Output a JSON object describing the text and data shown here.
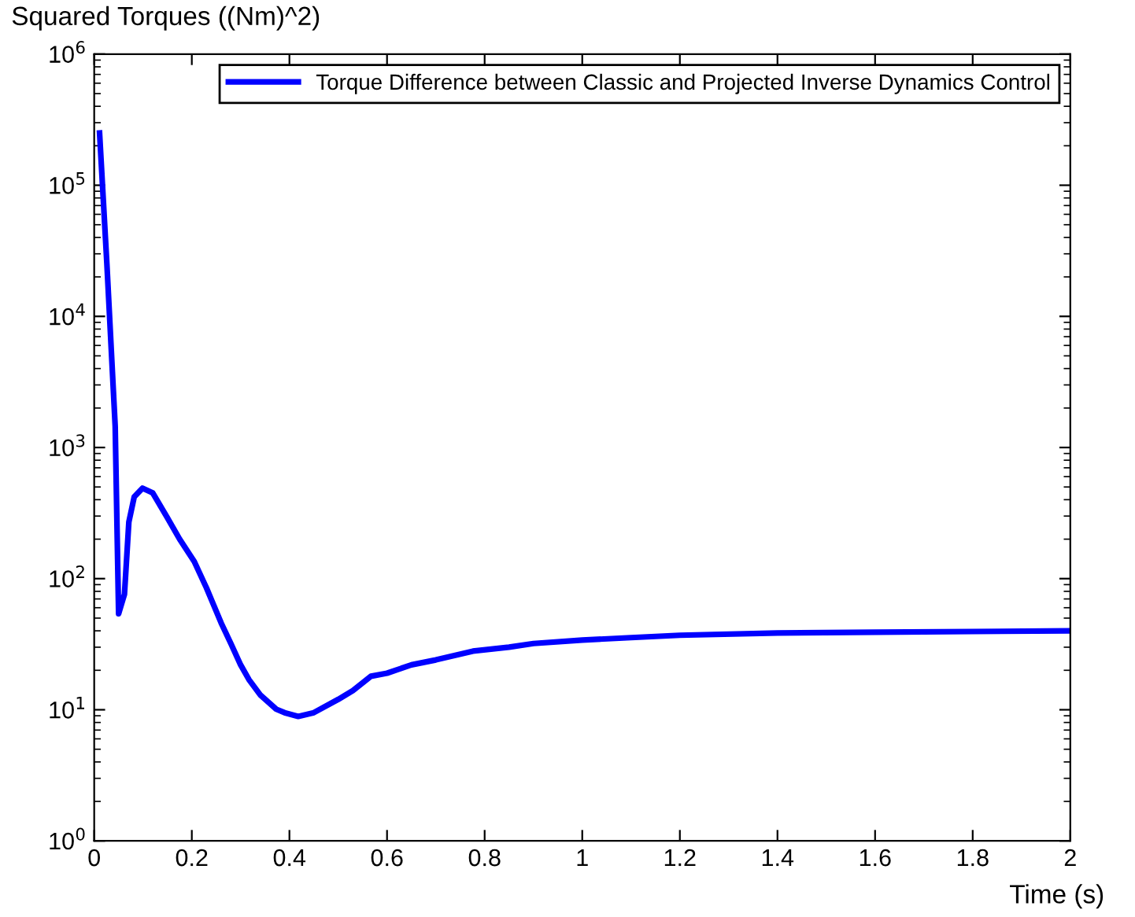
{
  "chart_data": {
    "type": "line",
    "xlabel": "Time (s)",
    "ylabel": "Squared Torques ((Nm)^2)",
    "log": "y",
    "xlim": [
      0,
      2
    ],
    "ylim": [
      1,
      1000000
    ],
    "xticks": [
      0,
      0.2,
      0.4,
      0.6,
      0.8,
      1,
      1.2,
      1.4,
      1.6,
      1.8,
      2
    ],
    "yticks": [
      {
        "value": 1,
        "label": "10$^{0}$"
      },
      {
        "value": 10,
        "label": "10$^{1}$"
      },
      {
        "value": 100,
        "label": "10$^{2}$"
      },
      {
        "value": 1000,
        "label": "10$^{3}$"
      },
      {
        "value": 10000,
        "label": "10$^{4}$"
      },
      {
        "value": 100000,
        "label": "10$^{5}$"
      },
      {
        "value": 1000000,
        "label": "10$^{6}$"
      }
    ],
    "grid": false,
    "legend": "top right",
    "line_style": "solid",
    "marker": "none",
    "series": [
      {
        "name": "Torque Difference between Classic and Projected Inverse Dynamics Control",
        "color": "#0000ff",
        "x": [
          0.011,
          0.026,
          0.043,
          0.05,
          0.062,
          0.071,
          0.082,
          0.099,
          0.12,
          0.149,
          0.175,
          0.205,
          0.23,
          0.26,
          0.28,
          0.3,
          0.317,
          0.34,
          0.373,
          0.39,
          0.418,
          0.45,
          0.5,
          0.53,
          0.567,
          0.6,
          0.65,
          0.7,
          0.776,
          0.85,
          0.9,
          1.0,
          1.1,
          1.2,
          1.4,
          1.6,
          1.8,
          2.0
        ],
        "values": [
          250000,
          25000,
          1450,
          54,
          76,
          270,
          420,
          490,
          450,
          295,
          200,
          135,
          85,
          46,
          32,
          22,
          17,
          13,
          10.1,
          9.5,
          8.9,
          9.5,
          12,
          14,
          18,
          19,
          22,
          24,
          28,
          30,
          32,
          34,
          35.5,
          37,
          38.5,
          39,
          39.5,
          40
        ]
      }
    ]
  }
}
